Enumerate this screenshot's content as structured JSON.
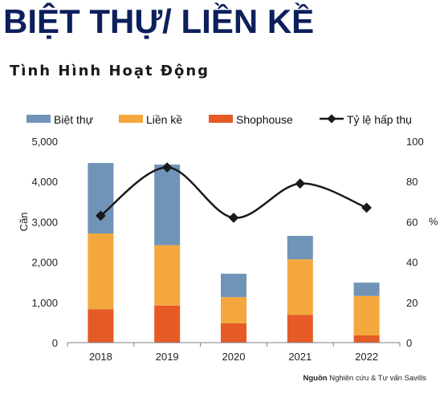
{
  "header": {
    "title": "BIỆT THỰ/ LIỀN KỀ",
    "subtitle": "Tình Hình Hoạt Động"
  },
  "source": {
    "label": "Nguồn",
    "text": " Nghiên cứu & Tư vấn Savills"
  },
  "chart_data": {
    "type": "bar",
    "stacked": true,
    "categories": [
      "2018",
      "2019",
      "2020",
      "2021",
      "2022"
    ],
    "series": [
      {
        "name": "Biệt thự",
        "values": [
          1750,
          2000,
          580,
          580,
          330
        ],
        "color": "#7094b8"
      },
      {
        "name": "Liền kề",
        "values": [
          1880,
          1500,
          650,
          1380,
          980
        ],
        "color": "#f4a73c"
      },
      {
        "name": "Shophouse",
        "values": [
          830,
          920,
          480,
          690,
          180
        ],
        "color": "#e55a25"
      }
    ],
    "stack_order": [
      "Shophouse",
      "Liền kề",
      "Biệt thự"
    ],
    "line_series": {
      "name": "Tỷ lệ hấp thụ",
      "values": [
        63,
        87,
        62,
        79,
        67
      ],
      "color": "#1a1a1a",
      "axis": "right"
    },
    "ylabel": "Căn",
    "y2label": "%",
    "ylim": [
      0,
      5000
    ],
    "y2lim": [
      0,
      100
    ],
    "yticks": [
      "0",
      "1,000",
      "2,000",
      "3,000",
      "4,000",
      "5,000"
    ],
    "y2ticks": [
      "0",
      "20",
      "40",
      "60",
      "80",
      "100"
    ],
    "grid": false,
    "legend": "top"
  }
}
